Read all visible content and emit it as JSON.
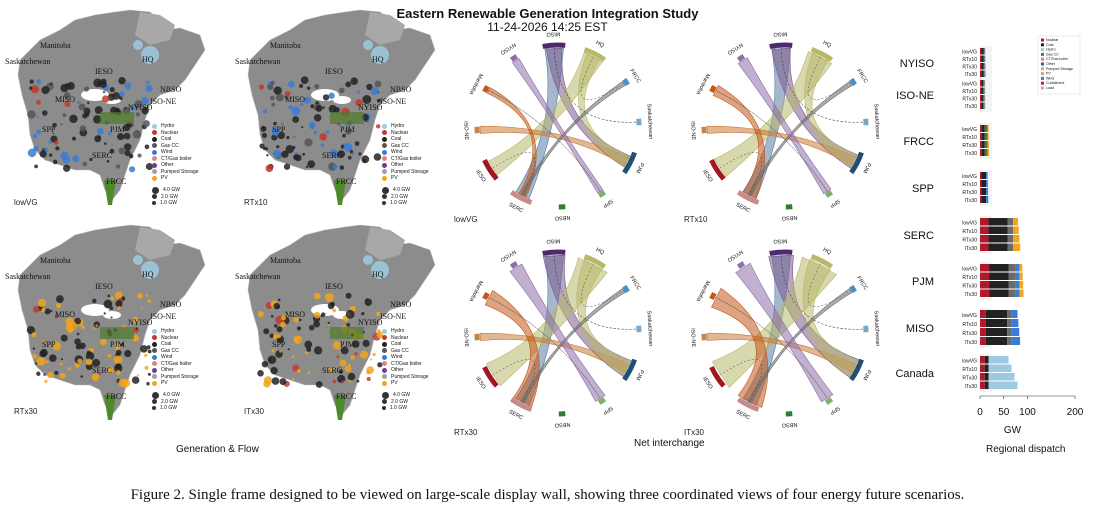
{
  "title": "Eastern Renewable Generation Integration Study",
  "timestamp": "11-24-2026 14:25 EST",
  "caption": "Figure 2. Single frame designed to be viewed on large-scale display wall, showing three coordinated views of four energy future scenarios.",
  "scenarios": [
    "lowVG",
    "RTx10",
    "RTx30",
    "ITx30"
  ],
  "sections": {
    "maps": "Generation & Flow",
    "chords": "Net interchange",
    "dispatch": "Regional dispatch"
  },
  "map_labels": [
    "Manitoba",
    "Saskatchewan",
    "IESO",
    "HQ",
    "MISO",
    "NBSO",
    "ISO-NE",
    "NYISO",
    "SPP",
    "PJM",
    "SERC",
    "FRCC"
  ],
  "map_legend": {
    "items": [
      {
        "label": "Hydro",
        "color": "#9ecae1"
      },
      {
        "label": "Nuclear",
        "color": "#c0392b"
      },
      {
        "label": "Coal",
        "color": "#222222"
      },
      {
        "label": "Gas CC",
        "color": "#555555"
      },
      {
        "label": "Wind",
        "color": "#3a7bd5"
      },
      {
        "label": "CT/Gas boiler",
        "color": "#d98880"
      },
      {
        "label": "Other",
        "color": "#6a3d9a"
      },
      {
        "label": "Pumped Storage",
        "color": "#a0a0a0"
      },
      {
        "label": "PV",
        "color": "#f1a51c"
      }
    ],
    "sizes": [
      "4.0 GW",
      "2.0 GW",
      "1.0 GW"
    ]
  },
  "chord_nodes": [
    "MISO",
    "HQ",
    "FRCC",
    "Saskatchewan",
    "PJM",
    "SPP",
    "NBSO",
    "SERC",
    "IESO",
    "ISO-NE",
    "Manitoba",
    "NYISO"
  ],
  "chord_colors": {
    "MISO": "#4b2a6e",
    "HQ": "#b7b86a",
    "FRCC": "#4d8fbf",
    "Saskatchewan": "#7aa7c7",
    "PJM": "#1f4e79",
    "SPP": "#7fb069",
    "NBSO": "#2e7d32",
    "SERC": "#c98a8a",
    "IESO": "#a31621",
    "ISO-NE": "#c0864d",
    "Manitoba": "#c2571a",
    "NYISO": "#8e6fa8"
  },
  "dispatch": {
    "regions": [
      "NYISO",
      "ISO-NE",
      "FRCC",
      "SPP",
      "SERC",
      "PJM",
      "MISO",
      "Canada"
    ],
    "scenario_labels": [
      "lowVG",
      "RTx10",
      "RTx30",
      "ITx30"
    ],
    "xlabel": "GW",
    "xticks": [
      "0",
      "50",
      "100",
      "200"
    ],
    "legend": [
      {
        "label": "Nuclear",
        "color": "#b2182b"
      },
      {
        "label": "Coal",
        "color": "#222222"
      },
      {
        "label": "Hydro",
        "color": "#9ecae1"
      },
      {
        "label": "Gas CC",
        "color": "#6b6b6b"
      },
      {
        "label": "CT/Gas boiler",
        "color": "#d98880"
      },
      {
        "label": "Other",
        "color": "#6a3d9a"
      },
      {
        "label": "Pumped Storage",
        "color": "#b0b0b0"
      },
      {
        "label": "PV",
        "color": "#f1a51c"
      },
      {
        "label": "Wind",
        "color": "#3a7bd5"
      },
      {
        "label": "Curtailment",
        "color": "#e31a1c"
      },
      {
        "label": "Load",
        "color": "#c9a0dc"
      }
    ]
  }
}
